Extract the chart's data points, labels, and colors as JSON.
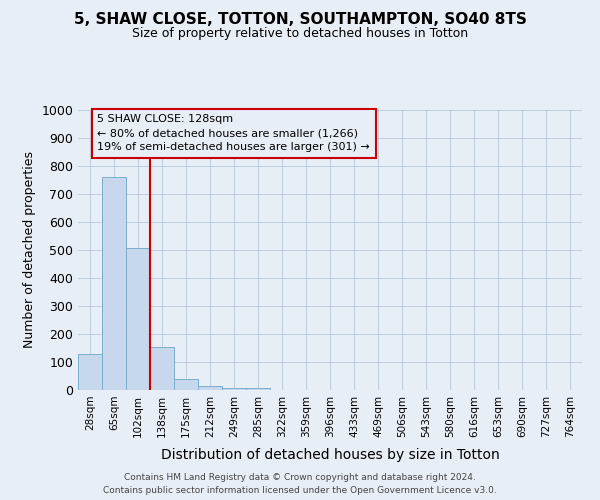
{
  "title1": "5, SHAW CLOSE, TOTTON, SOUTHAMPTON, SO40 8TS",
  "title2": "Size of property relative to detached houses in Totton",
  "xlabel": "Distribution of detached houses by size in Totton",
  "ylabel": "Number of detached properties",
  "footer1": "Contains HM Land Registry data © Crown copyright and database right 2024.",
  "footer2": "Contains public sector information licensed under the Open Government Licence v3.0.",
  "annotation_line1": "5 SHAW CLOSE: 128sqm",
  "annotation_line2": "← 80% of detached houses are smaller (1,266)",
  "annotation_line3": "19% of semi-detached houses are larger (301) →",
  "bar_labels": [
    "28sqm",
    "65sqm",
    "102sqm",
    "138sqm",
    "175sqm",
    "212sqm",
    "249sqm",
    "285sqm",
    "322sqm",
    "359sqm",
    "396sqm",
    "433sqm",
    "469sqm",
    "506sqm",
    "543sqm",
    "580sqm",
    "616sqm",
    "653sqm",
    "690sqm",
    "727sqm",
    "764sqm"
  ],
  "bar_values": [
    128,
    760,
    507,
    152,
    40,
    14,
    8,
    7,
    0,
    0,
    0,
    0,
    0,
    0,
    0,
    0,
    0,
    0,
    0,
    0,
    0
  ],
  "bar_color": "#c8d8ec",
  "bar_edge_color": "#7aadcf",
  "vline_color": "#cc0000",
  "vline_x": 2.5,
  "ylim_max": 1000,
  "yticks": [
    0,
    100,
    200,
    300,
    400,
    500,
    600,
    700,
    800,
    900,
    1000
  ],
  "annotation_box_edge_color": "#cc0000",
  "bg_color": "#e8eef5",
  "plot_bg_color": "#e8eef5",
  "grid_color": "#b8c8dc",
  "title_fontsize": 11,
  "subtitle_fontsize": 9,
  "xlabel_fontsize": 10,
  "ylabel_fontsize": 9,
  "tick_fontsize": 7.5,
  "ytick_fontsize": 9,
  "footer_fontsize": 6.5,
  "annotation_fontsize": 8
}
